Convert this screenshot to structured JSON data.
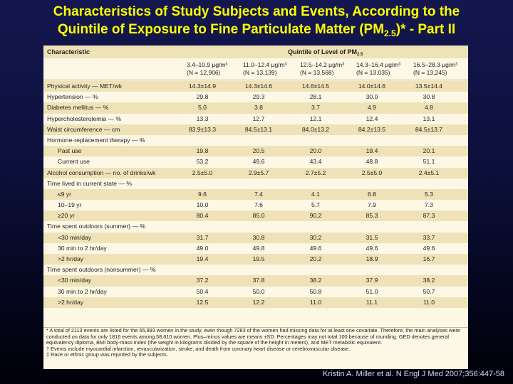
{
  "slide": {
    "title_line1": "Characteristics of Study Subjects and Events, According to the",
    "title_line2_pre": "Quintile of Exposure to Fine Particulate Matter (PM",
    "title_line2_sub": "2.5",
    "title_line2_post": ")* - Part II",
    "citation": "Kristin A. Miller et al. N Engl J Med 2007;356:447-58"
  },
  "table": {
    "characteristic_header": "Characteristic",
    "quintile_header": "Quintile of Level of PM",
    "quintile_header_sub": "2.5",
    "columns": [
      {
        "range": "3.4–10.9 μg/m³",
        "n": "(N = 12,906)"
      },
      {
        "range": "11.0–12.4 μg/m³",
        "n": "(N = 13,139)"
      },
      {
        "range": "12.5–14.2 μg/m³",
        "n": "(N = 13,568)"
      },
      {
        "range": "14.3–16.4 μg/m³",
        "n": "(N = 13,035)"
      },
      {
        "range": "16.5–28.3 μg/m³",
        "n": "(N = 13,245)"
      }
    ],
    "rows": [
      {
        "label": "Physical activity — MET/wk",
        "indent": false,
        "shade": true,
        "values": [
          "14.3±14.9",
          "14.3±14.6",
          "14.6±14.5",
          "14.0±14.6",
          "13.5±14.4"
        ]
      },
      {
        "label": "Hypertension — %",
        "indent": false,
        "shade": false,
        "values": [
          "29.8",
          "29.3",
          "28.1",
          "30.0",
          "30.8"
        ]
      },
      {
        "label": "Diabetes mellitus — %",
        "indent": false,
        "shade": true,
        "values": [
          "5.0",
          "3.8",
          "3.7",
          "4.9",
          "4.8"
        ]
      },
      {
        "label": "Hypercholesterolemia — %",
        "indent": false,
        "shade": false,
        "values": [
          "13.3",
          "12.7",
          "12.1",
          "12.4",
          "13.1"
        ]
      },
      {
        "label": "Waist circumference — cm",
        "indent": false,
        "shade": true,
        "values": [
          "83.9±13.3",
          "84.5±13.1",
          "84.0±13.2",
          "84.2±13.5",
          "84.5±13.7"
        ]
      },
      {
        "label": "Hormone-replacement therapy — %",
        "indent": false,
        "shade": false,
        "values": [
          "",
          "",
          "",
          "",
          ""
        ]
      },
      {
        "label": "Past use",
        "indent": true,
        "shade": true,
        "values": [
          "19.8",
          "20.5",
          "20.0",
          "19.4",
          "20.1"
        ]
      },
      {
        "label": "Current use",
        "indent": true,
        "shade": false,
        "values": [
          "53.2",
          "49.6",
          "43.4",
          "48.8",
          "51.1"
        ]
      },
      {
        "label": "Alcohol consumption — no. of drinks/wk",
        "indent": false,
        "shade": true,
        "values": [
          "2.5±5.0",
          "2.9±5.7",
          "2.7±5.2",
          "2.5±5.0",
          "2.4±5.1"
        ]
      },
      {
        "label": "Time lived in current state — %",
        "indent": false,
        "shade": false,
        "values": [
          "",
          "",
          "",
          "",
          ""
        ]
      },
      {
        "label": "≤9 yr",
        "indent": true,
        "shade": true,
        "values": [
          "9.6",
          "7.4",
          "4.1",
          "6.8",
          "5.3"
        ]
      },
      {
        "label": "10–19 yr",
        "indent": true,
        "shade": false,
        "values": [
          "10.0",
          "7.6",
          "5.7",
          "7.9",
          "7.3"
        ]
      },
      {
        "label": "≥20 yr",
        "indent": true,
        "shade": true,
        "values": [
          "80.4",
          "85.0",
          "90.2",
          "85.3",
          "87.3"
        ]
      },
      {
        "label": "Time spent outdoors (summer) — %",
        "indent": false,
        "shade": false,
        "values": [
          "",
          "",
          "",
          "",
          ""
        ]
      },
      {
        "label": "<30 min/day",
        "indent": true,
        "shade": true,
        "values": [
          "31.7",
          "30.8",
          "30.2",
          "31.5",
          "33.7"
        ]
      },
      {
        "label": "30 min to 2 hr/day",
        "indent": true,
        "shade": false,
        "values": [
          "49.0",
          "49.8",
          "49.6",
          "49.6",
          "49.6"
        ]
      },
      {
        "label": ">2 hr/day",
        "indent": true,
        "shade": true,
        "values": [
          "19.4",
          "19.5",
          "20.2",
          "18.9",
          "16.7"
        ]
      },
      {
        "label": "Time spent outdoors (nonsummer) — %",
        "indent": false,
        "shade": false,
        "values": [
          "",
          "",
          "",
          "",
          ""
        ]
      },
      {
        "label": "<30 min/day",
        "indent": true,
        "shade": true,
        "values": [
          "37.2",
          "37.8",
          "38.2",
          "37.9",
          "38.2"
        ]
      },
      {
        "label": "30 min to 2 hr/day",
        "indent": true,
        "shade": false,
        "values": [
          "50.4",
          "50.0",
          "50.8",
          "51.0",
          "50.7"
        ]
      },
      {
        "label": ">2 hr/day",
        "indent": true,
        "shade": true,
        "values": [
          "12.5",
          "12.2",
          "11.0",
          "11.1",
          "11.0"
        ]
      }
    ],
    "footnotes": [
      "* A total of 2113 events are listed for the 65,893 women in the study, even though 7283 of the women had missing data for at least one covariate. Therefore, the main analyses were conducted on data for only 1816 events among 58,610 women. Plus–minus values are means ±SD. Percentages may not total 100 because of rounding. GED denotes general equivalency diploma, BMI body-mass index (the weight in kilograms divided by the square of the height in meters), and MET metabolic equivalent.",
      "† Events include myocardial infarction, revascularization, stroke, and death from coronary heart disease or cerebrovascular disease.",
      "‡ Race or ethnic group was reported by the subjects."
    ]
  }
}
